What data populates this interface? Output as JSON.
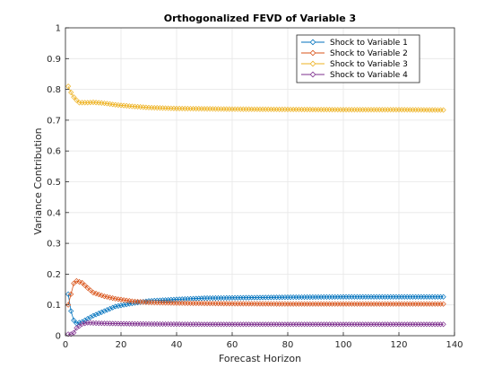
{
  "chart_data": {
    "type": "line",
    "title": "Orthogonalized FEVD of Variable 3",
    "xlabel": "Forecast Horizon",
    "ylabel": "Variance Contribution",
    "xlim": [
      0,
      140
    ],
    "ylim": [
      0,
      1
    ],
    "xticks": [
      0,
      20,
      40,
      60,
      80,
      100,
      120,
      140
    ],
    "yticks": [
      0,
      0.1,
      0.2,
      0.3,
      0.4,
      0.5,
      0.6,
      0.7,
      0.8,
      0.9,
      1
    ],
    "grid": true,
    "legend_position": "top-right",
    "marker": "diamond",
    "x_range": [
      1,
      136
    ],
    "series": [
      {
        "name": "Shock to Variable 1",
        "color": "#0072BD",
        "points": [
          [
            1,
            0.135
          ],
          [
            2,
            0.08
          ],
          [
            3,
            0.05
          ],
          [
            4,
            0.04
          ],
          [
            6,
            0.045
          ],
          [
            8,
            0.055
          ],
          [
            10,
            0.065
          ],
          [
            14,
            0.08
          ],
          [
            18,
            0.095
          ],
          [
            24,
            0.105
          ],
          [
            30,
            0.113
          ],
          [
            40,
            0.118
          ],
          [
            50,
            0.122
          ],
          [
            60,
            0.123
          ],
          [
            80,
            0.125
          ],
          [
            100,
            0.126
          ],
          [
            120,
            0.126
          ],
          [
            136,
            0.126
          ]
        ]
      },
      {
        "name": "Shock to Variable 2",
        "color": "#D95319",
        "points": [
          [
            1,
            0.1
          ],
          [
            2,
            0.135
          ],
          [
            3,
            0.17
          ],
          [
            4,
            0.178
          ],
          [
            6,
            0.172
          ],
          [
            8,
            0.155
          ],
          [
            10,
            0.14
          ],
          [
            14,
            0.128
          ],
          [
            18,
            0.12
          ],
          [
            24,
            0.112
          ],
          [
            30,
            0.108
          ],
          [
            40,
            0.106
          ],
          [
            60,
            0.104
          ],
          [
            80,
            0.103
          ],
          [
            100,
            0.103
          ],
          [
            120,
            0.103
          ],
          [
            136,
            0.103
          ]
        ]
      },
      {
        "name": "Shock to Variable 3",
        "color": "#EDB120",
        "points": [
          [
            1,
            0.81
          ],
          [
            2,
            0.79
          ],
          [
            3,
            0.775
          ],
          [
            4,
            0.765
          ],
          [
            5,
            0.757
          ],
          [
            8,
            0.757
          ],
          [
            10,
            0.758
          ],
          [
            14,
            0.755
          ],
          [
            18,
            0.75
          ],
          [
            24,
            0.745
          ],
          [
            30,
            0.741
          ],
          [
            40,
            0.738
          ],
          [
            60,
            0.736
          ],
          [
            80,
            0.735
          ],
          [
            100,
            0.734
          ],
          [
            120,
            0.734
          ],
          [
            136,
            0.733
          ]
        ]
      },
      {
        "name": "Shock to Variable 4",
        "color": "#7E2F8E",
        "points": [
          [
            1,
            0.005
          ],
          [
            2,
            0.005
          ],
          [
            3,
            0.01
          ],
          [
            4,
            0.025
          ],
          [
            6,
            0.038
          ],
          [
            8,
            0.042
          ],
          [
            10,
            0.041
          ],
          [
            14,
            0.04
          ],
          [
            20,
            0.039
          ],
          [
            30,
            0.038
          ],
          [
            50,
            0.037
          ],
          [
            80,
            0.037
          ],
          [
            110,
            0.037
          ],
          [
            136,
            0.037
          ]
        ]
      }
    ]
  }
}
